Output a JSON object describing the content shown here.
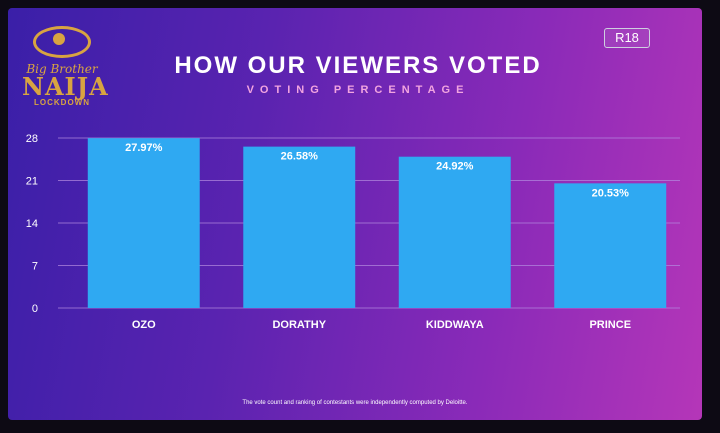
{
  "header": {
    "title": "HOW OUR VIEWERS VOTED",
    "subtitle": "VOTING PERCENTAGE",
    "rating": "R18"
  },
  "logo": {
    "line1": "Big Brother",
    "line2": "NAIJA",
    "line3": "LOCKDOWN"
  },
  "footnote": "The vote count and ranking of contestants were independently computed by Deloitte.",
  "colors": {
    "bar": "#2fa9f2",
    "grid": "#b48be0",
    "axis_text": "#ffffff"
  },
  "chart_data": {
    "type": "bar",
    "title": "HOW OUR VIEWERS VOTED",
    "subtitle": "VOTING PERCENTAGE",
    "categories": [
      "OZO",
      "DORATHY",
      "KIDDWAYA",
      "PRINCE"
    ],
    "values": [
      27.97,
      26.58,
      24.92,
      20.53
    ],
    "data_labels": [
      "27.97%",
      "26.58%",
      "24.92%",
      "20.53%"
    ],
    "yticks": [
      0,
      7,
      14,
      21,
      28
    ],
    "ylim": [
      0,
      28
    ],
    "grid": true,
    "legend": "none"
  }
}
